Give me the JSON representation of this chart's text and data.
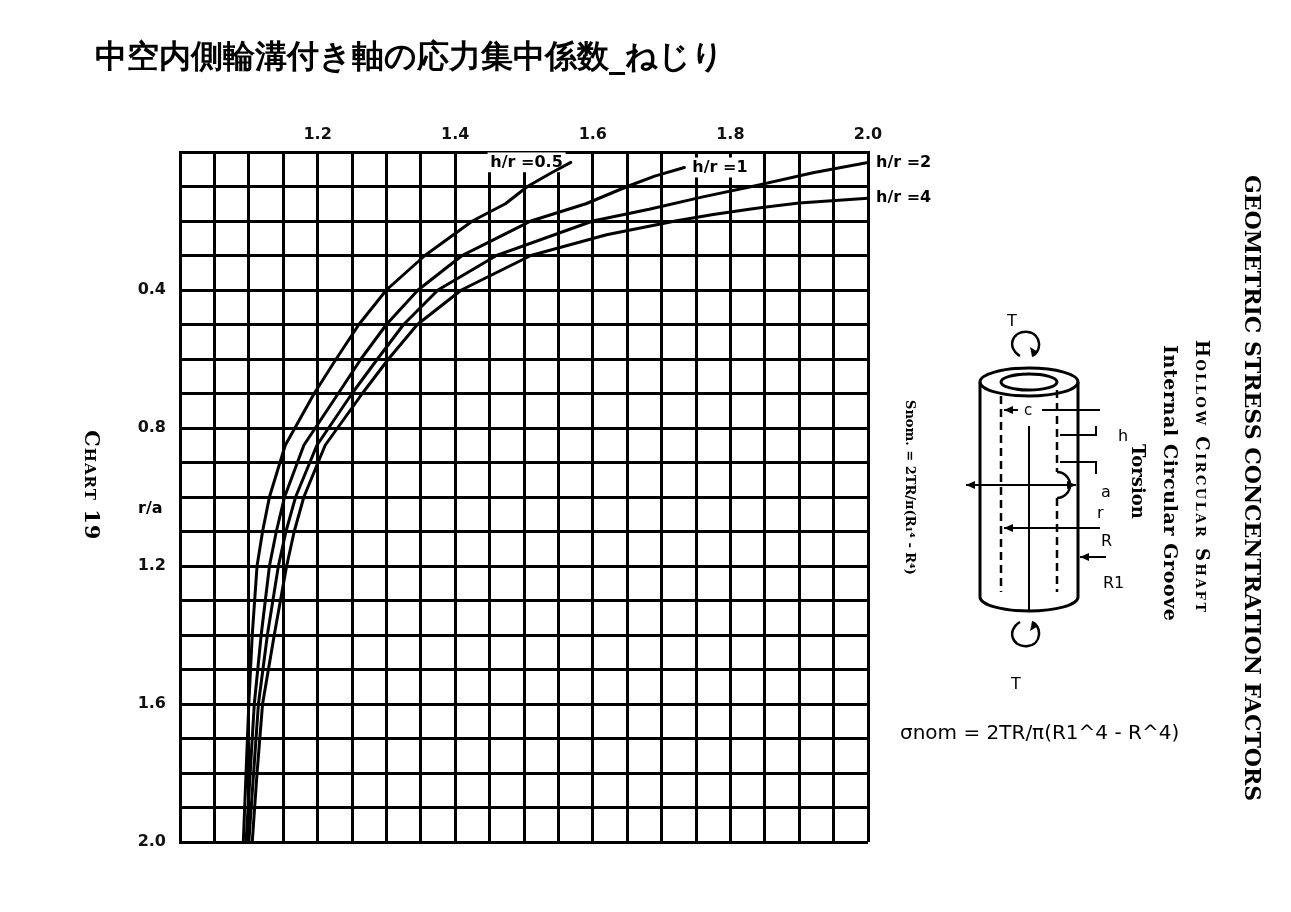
{
  "chart_data": {
    "type": "line",
    "title": "中空内側輪溝付き軸の応力集中係数_ねじり",
    "ylabel": "r/a",
    "xlim": [
      1,
      2
    ],
    "xticks": [
      {
        "value": 1,
        "label": null
      },
      {
        "value": 1.05,
        "label": null
      },
      {
        "value": 1.1,
        "label": null
      },
      {
        "value": 1.15,
        "label": null
      },
      1.2,
      {
        "value": 1.25,
        "label": null
      },
      {
        "value": 1.3,
        "label": null
      },
      {
        "value": 1.35,
        "label": null
      },
      1.4,
      {
        "value": 1.45,
        "label": null
      },
      {
        "value": 1.5,
        "label": null
      },
      {
        "value": 1.55,
        "label": null
      },
      1.6,
      {
        "value": 1.65,
        "label": null
      },
      {
        "value": 1.7,
        "label": null
      },
      {
        "value": 1.75,
        "label": null
      },
      1.8,
      {
        "value": 1.85,
        "label": null
      },
      {
        "value": 1.9,
        "label": null
      },
      {
        "value": 1.95,
        "label": null
      },
      {
        "value": 2,
        "label": "2.0"
      }
    ],
    "ylim": [
      2,
      0
    ],
    "yticks": [
      {
        "value": 0,
        "label": null
      },
      {
        "value": 0.1,
        "label": null
      },
      {
        "value": 0.2,
        "label": null
      },
      {
        "value": 0.3,
        "label": null
      },
      0.4,
      {
        "value": 0.5,
        "label": null
      },
      {
        "value": 0.6,
        "label": null
      },
      {
        "value": 0.7,
        "label": null
      },
      0.8,
      {
        "value": 0.9,
        "label": null
      },
      {
        "value": 1,
        "label": null
      },
      {
        "value": 1.1,
        "label": null
      },
      1.2,
      {
        "value": 1.3,
        "label": null
      },
      {
        "value": 1.4,
        "label": null
      },
      {
        "value": 1.5,
        "label": null
      },
      1.6,
      {
        "value": 1.7,
        "label": null
      },
      {
        "value": 1.8,
        "label": null
      },
      {
        "value": 1.9,
        "label": null
      },
      {
        "value": 2,
        "label": "2.0"
      }
    ],
    "grid": true,
    "marker": "none",
    "line_style": "solid",
    "series": [
      {
        "name": "h/r =0.5",
        "color": "#000000",
        "x": [
          1.568,
          1.54,
          1.505,
          1.473,
          1.425,
          1.356,
          1.3,
          1.26,
          1.227,
          1.195,
          1.153,
          1.13,
          1.12,
          1.112,
          1.105,
          1.1,
          1.096,
          1.092
        ],
        "values": [
          0.03,
          0.06,
          0.1,
          0.15,
          0.2,
          0.3,
          0.4,
          0.5,
          0.6,
          0.7,
          0.85,
          1.0,
          1.1,
          1.2,
          1.4,
          1.6,
          1.8,
          2.0
        ]
      },
      {
        "name": "h/r =1",
        "color": "#000000",
        "x": [
          1.733,
          1.69,
          1.65,
          1.59,
          1.51,
          1.41,
          1.346,
          1.3,
          1.263,
          1.23,
          1.18,
          1.152,
          1.14,
          1.13,
          1.118,
          1.108,
          1.102,
          1.096
        ],
        "values": [
          0.045,
          0.07,
          0.1,
          0.15,
          0.2,
          0.3,
          0.4,
          0.5,
          0.6,
          0.7,
          0.85,
          1.0,
          1.1,
          1.2,
          1.4,
          1.6,
          1.8,
          2.0
        ]
      },
      {
        "name": "h/r =2",
        "color": "#000000",
        "x": [
          2.0,
          1.92,
          1.845,
          1.76,
          1.682,
          1.6,
          1.46,
          1.375,
          1.325,
          1.287,
          1.25,
          1.199,
          1.168,
          1.154,
          1.143,
          1.127,
          1.114,
          1.107,
          1.1
        ],
        "values": [
          0.03,
          0.06,
          0.094,
          0.13,
          0.166,
          0.2,
          0.3,
          0.4,
          0.5,
          0.6,
          0.7,
          0.85,
          1.0,
          1.1,
          1.2,
          1.4,
          1.6,
          1.8,
          2.0
        ]
      },
      {
        "name": "h/r =4",
        "color": "#000000",
        "x": [
          2.0,
          1.9,
          1.83,
          1.775,
          1.72,
          1.62,
          1.51,
          1.409,
          1.345,
          1.303,
          1.265,
          1.211,
          1.18,
          1.166,
          1.155,
          1.137,
          1.12,
          1.112,
          1.105
        ],
        "values": [
          0.134,
          0.148,
          0.165,
          0.181,
          0.2,
          0.24,
          0.3,
          0.4,
          0.5,
          0.6,
          0.7,
          0.85,
          1.0,
          1.1,
          1.2,
          1.4,
          1.6,
          1.8,
          2.0
        ]
      }
    ],
    "annotations": [
      "Chart 19",
      "GEOMETRIC STRESS CONCENTRATION FACTORS",
      "Hollow Circular Shaft",
      "Internal Circular Groove",
      "Torsion",
      "Snom. = 2TR/π(R₁⁴ - R⁴)",
      "σnom = 2TR/π(R1^4 - R^4)",
      "T",
      "c",
      "h",
      "a",
      "r",
      "R",
      "R1",
      "T"
    ]
  }
}
